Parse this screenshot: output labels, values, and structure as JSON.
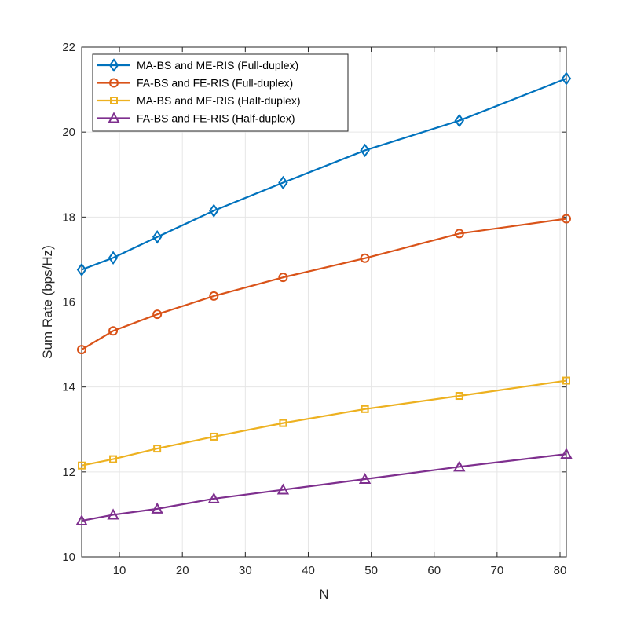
{
  "chart_data": {
    "type": "line",
    "title": "",
    "xlabel": "N",
    "ylabel": "Sum Rate (bps/Hz)",
    "xlim": [
      4,
      81
    ],
    "ylim": [
      10,
      22
    ],
    "xticks": [
      10,
      20,
      30,
      40,
      50,
      60,
      70,
      80
    ],
    "yticks": [
      10,
      12,
      14,
      16,
      18,
      20,
      22
    ],
    "grid": true,
    "legend_position": "top-left",
    "x": [
      4,
      9,
      16,
      25,
      36,
      49,
      64,
      81
    ],
    "series": [
      {
        "name": "MA-BS and ME-RIS (Full-duplex)",
        "color": "#0072BD",
        "marker": "diamond",
        "values": [
          16.76,
          17.04,
          17.53,
          18.15,
          18.81,
          19.57,
          20.27,
          21.26
        ]
      },
      {
        "name": "FA-BS and FE-RIS (Full-duplex)",
        "color": "#D95319",
        "marker": "circle",
        "values": [
          14.88,
          15.32,
          15.71,
          16.14,
          16.58,
          17.03,
          17.61,
          17.96
        ]
      },
      {
        "name": "MA-BS and ME-RIS (Half-duplex)",
        "color": "#EDB120",
        "marker": "square",
        "values": [
          12.15,
          12.3,
          12.55,
          12.83,
          13.15,
          13.48,
          13.79,
          14.15
        ]
      },
      {
        "name": "FA-BS and FE-RIS (Half-duplex)",
        "color": "#7E2F8E",
        "marker": "triangle",
        "values": [
          10.85,
          10.99,
          11.13,
          11.37,
          11.58,
          11.83,
          12.12,
          12.42
        ]
      }
    ]
  }
}
